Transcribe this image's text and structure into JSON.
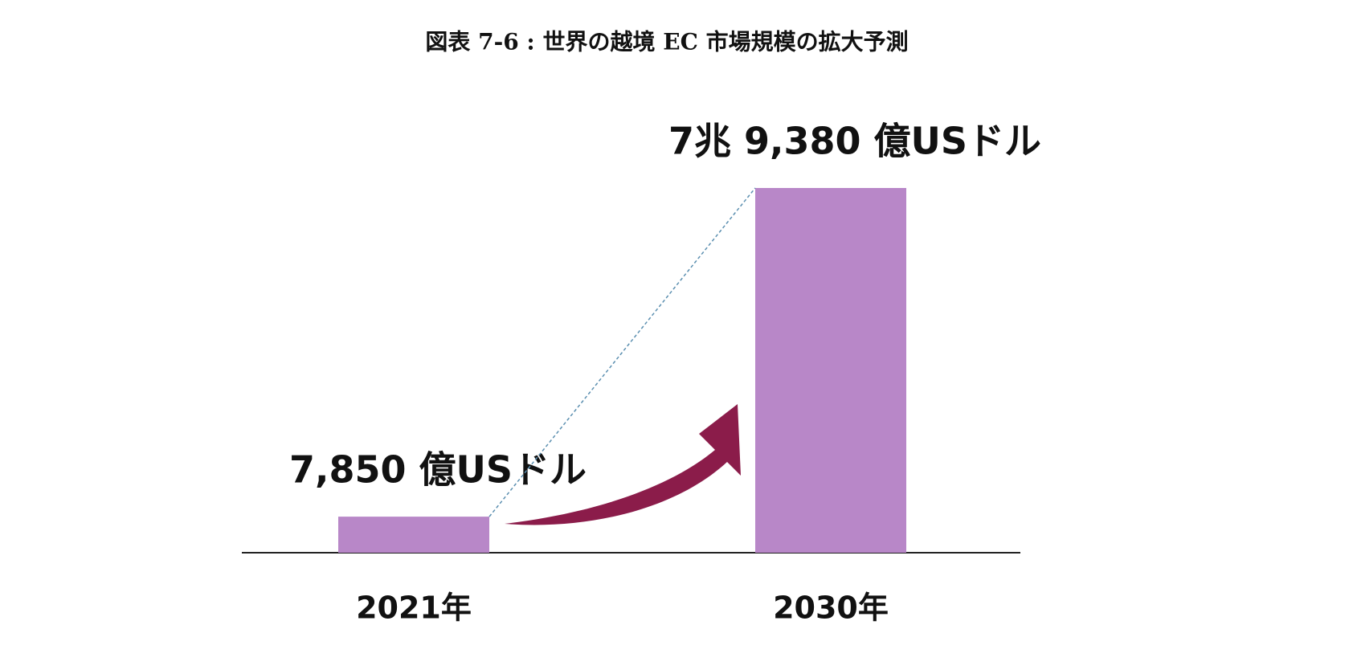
{
  "chart_data": {
    "type": "bar",
    "title": "図表 7-6 : 世界の越境 EC 市場規模の拡大予測",
    "categories": [
      "2021年",
      "2030年"
    ],
    "values": [
      7850,
      79380
    ],
    "value_labels": [
      "7,850 億USドル",
      "7兆 9,380 億USドル"
    ],
    "color": "#b887c8"
  }
}
